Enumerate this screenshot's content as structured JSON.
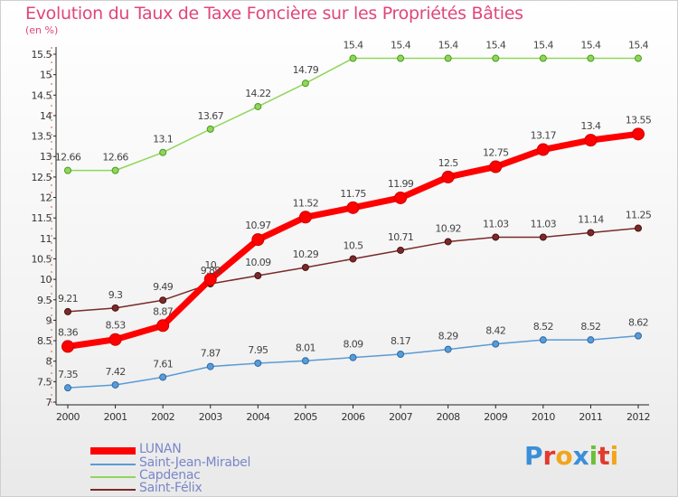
{
  "title": "Evolution du Taux de Taxe Foncière sur les Propriétés Bâties",
  "unit": "(en %)",
  "logo": "Proxiti",
  "chart_data": {
    "type": "line",
    "title": "Evolution du Taux de Taxe Foncière sur les Propriétés Bâties",
    "ylabel": "(en %)",
    "xlabel": "",
    "x": [
      "2000",
      "2001",
      "2002",
      "2003",
      "2004",
      "2005",
      "2006",
      "2007",
      "2008",
      "2009",
      "2010",
      "2011",
      "2012"
    ],
    "ylim": [
      7,
      15.5
    ],
    "yticks": [
      "7",
      "7.5",
      "8",
      "8.5",
      "9",
      "9.5",
      "10",
      "10.5",
      "11",
      "11.5",
      "12",
      "12.5",
      "13",
      "13.5",
      "14",
      "14.5",
      "15",
      "15.5"
    ],
    "grid": false,
    "legend_position": "bottom-left",
    "series": [
      {
        "name": "LUNAN",
        "color": "#ff0000",
        "values": [
          8.36,
          8.53,
          8.87,
          10,
          10.97,
          11.52,
          11.75,
          11.99,
          12.5,
          12.75,
          13.17,
          13.4,
          13.55
        ],
        "labels": [
          "8.36",
          "8.53",
          "8.87",
          "10",
          "10.97",
          "11.52",
          "11.75",
          "11.99",
          "12.5",
          "12.75",
          "13.17",
          "13.4",
          "13.55"
        ]
      },
      {
        "name": "Saint-Jean-Mirabel",
        "color": "#5a9bd5",
        "values": [
          7.35,
          7.42,
          7.61,
          7.87,
          7.95,
          8.01,
          8.09,
          8.17,
          8.29,
          8.42,
          8.52,
          8.52,
          8.62
        ],
        "labels": [
          "7.35",
          "7.42",
          "7.61",
          "7.87",
          "7.95",
          "8.01",
          "8.09",
          "8.17",
          "8.29",
          "8.42",
          "8.52",
          "8.52",
          "8.62"
        ]
      },
      {
        "name": "Capdenac",
        "color": "#8fd65a",
        "values": [
          12.66,
          12.66,
          13.1,
          13.67,
          14.22,
          14.79,
          15.4,
          15.4,
          15.4,
          15.4,
          15.4,
          15.4,
          15.4
        ],
        "labels": [
          "12.66",
          "12.66",
          "13.1",
          "13.67",
          "14.22",
          "14.79",
          "15.4",
          "15.4",
          "15.4",
          "15.4",
          "15.4",
          "15.4",
          "15.4"
        ]
      },
      {
        "name": "Saint-Félix",
        "color": "#7a2a2a",
        "values": [
          9.21,
          9.3,
          9.49,
          9.89,
          10.09,
          10.29,
          10.5,
          10.71,
          10.92,
          11.03,
          11.03,
          11.14,
          11.25
        ],
        "labels": [
          "9.21",
          "9.3",
          "9.49",
          "9.89",
          "10.09",
          "10.29",
          "10.5",
          "10.71",
          "10.92",
          "11.03",
          "11.03",
          "11.14",
          "11.25"
        ]
      }
    ]
  }
}
